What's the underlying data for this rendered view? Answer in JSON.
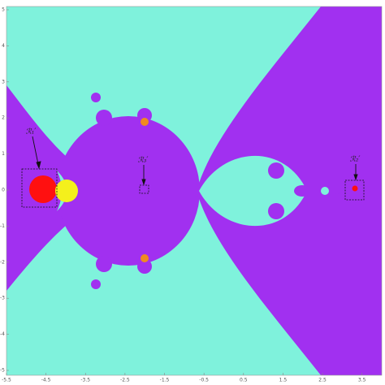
{
  "chart_data": {
    "type": "image",
    "xlim": [
      -5.5,
      4
    ],
    "ylim": [
      -5,
      5
    ],
    "xticks": [
      -5.5,
      -4.5,
      -3.5,
      -2.5,
      -1.5,
      -0.5,
      0.5,
      1.5,
      2.5,
      3.5
    ],
    "yticks": [
      -5,
      -4,
      -3,
      -2,
      -1,
      0,
      1,
      2,
      3,
      4,
      5
    ],
    "annotations": [
      "ℛ₁′",
      "ℛ₃′",
      "ℛ₂′"
    ]
  }
}
